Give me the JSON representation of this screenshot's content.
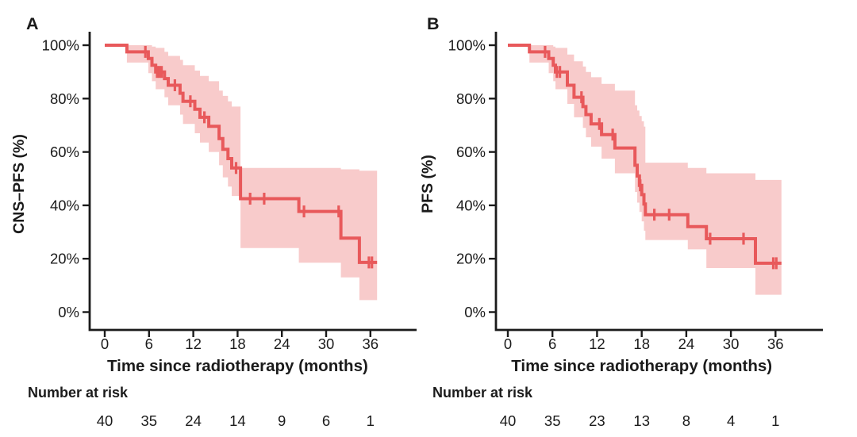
{
  "figure": {
    "background": "#ffffff",
    "text_color": "#1b1b1b",
    "axis_color": "#1b1b1b"
  },
  "chart_data": [
    {
      "type": "line",
      "subtype": "kaplan_meier_survival_with_confidence_band",
      "panel_label": "A",
      "ylabel": "CNS–PFS (%)",
      "xlabel": "Time since radiotherapy (months)",
      "x_tick_values": [
        0,
        6,
        12,
        18,
        24,
        30,
        36
      ],
      "x_tick_labels": [
        "0",
        "6",
        "12",
        "18",
        "24",
        "30",
        "36"
      ],
      "y_tick_values": [
        0,
        20,
        40,
        60,
        80,
        100
      ],
      "y_tick_labels": [
        "0%",
        "20%",
        "40%",
        "60%",
        "80%",
        "100%"
      ],
      "xlim": [
        0,
        40
      ],
      "ylim": [
        0,
        100
      ],
      "grid": false,
      "legend": "none",
      "line_color": "#e8595b",
      "band_color": "#f8cbcb",
      "curve_end_time": 36.9,
      "survival_steps": [
        [
          0,
          100
        ],
        [
          3.0,
          97.5
        ],
        [
          5.9,
          95.0
        ],
        [
          6.4,
          92.5
        ],
        [
          6.9,
          90.0
        ],
        [
          8.1,
          87.5
        ],
        [
          8.6,
          85.0
        ],
        [
          10.2,
          82.0
        ],
        [
          10.6,
          79.0
        ],
        [
          12.2,
          76.0
        ],
        [
          12.9,
          73.0
        ],
        [
          14.1,
          69.6
        ],
        [
          15.5,
          65.0
        ],
        [
          16.0,
          61.0
        ],
        [
          16.7,
          57.5
        ],
        [
          17.2,
          54.0
        ],
        [
          18.4,
          42.5
        ],
        [
          26.3,
          37.7
        ],
        [
          32.0,
          27.7
        ],
        [
          34.5,
          18.6
        ]
      ],
      "censor_marks": [
        [
          5.5,
          97.5
        ],
        [
          7.1,
          90.0
        ],
        [
          7.4,
          90.0
        ],
        [
          7.7,
          90.0
        ],
        [
          9.5,
          85.0
        ],
        [
          11.6,
          79.0
        ],
        [
          13.5,
          73.0
        ],
        [
          17.8,
          54.0
        ],
        [
          19.7,
          42.5
        ],
        [
          21.6,
          42.5
        ],
        [
          27.0,
          37.7
        ],
        [
          31.7,
          37.7
        ],
        [
          35.8,
          18.6
        ],
        [
          36.2,
          18.6
        ]
      ],
      "confidence_band": [
        [
          3.0,
          93.5,
          100.0
        ],
        [
          5.9,
          89.5,
          100.0
        ],
        [
          6.4,
          86.5,
          99.5
        ],
        [
          6.9,
          83.5,
          99.0
        ],
        [
          8.1,
          80.5,
          97.5
        ],
        [
          8.6,
          77.5,
          96.0
        ],
        [
          10.2,
          74.0,
          94.5
        ],
        [
          10.6,
          70.5,
          92.5
        ],
        [
          12.2,
          67.0,
          90.5
        ],
        [
          12.9,
          63.5,
          88.5
        ],
        [
          14.1,
          60.0,
          86.5
        ],
        [
          15.5,
          55.0,
          83.0
        ],
        [
          16.0,
          50.5,
          81.0
        ],
        [
          16.7,
          47.0,
          79.0
        ],
        [
          17.2,
          43.5,
          77.0
        ],
        [
          18.4,
          24.0,
          54.0
        ],
        [
          26.3,
          18.5,
          54.0
        ],
        [
          32.0,
          13.0,
          53.5
        ],
        [
          34.5,
          4.5,
          53.0
        ]
      ],
      "risk_section": {
        "label": "Number at risk",
        "times": [
          0,
          6,
          12,
          18,
          24,
          30,
          36
        ],
        "counts": [
          40,
          35,
          24,
          14,
          9,
          6,
          1
        ]
      }
    },
    {
      "type": "line",
      "subtype": "kaplan_meier_survival_with_confidence_band",
      "panel_label": "B",
      "ylabel": "PFS (%)",
      "xlabel": "Time since radiotherapy (months)",
      "x_tick_values": [
        0,
        6,
        12,
        18,
        24,
        30,
        36
      ],
      "x_tick_labels": [
        "0",
        "6",
        "12",
        "18",
        "24",
        "30",
        "36"
      ],
      "y_tick_values": [
        0,
        20,
        40,
        60,
        80,
        100
      ],
      "y_tick_labels": [
        "0%",
        "20%",
        "40%",
        "60%",
        "80%",
        "100%"
      ],
      "xlim": [
        0,
        40
      ],
      "ylim": [
        0,
        100
      ],
      "grid": false,
      "legend": "none",
      "line_color": "#e8595b",
      "band_color": "#f8cbcb",
      "curve_end_time": 36.8,
      "survival_steps": [
        [
          0,
          100
        ],
        [
          2.9,
          97.5
        ],
        [
          5.5,
          95.0
        ],
        [
          6.1,
          92.5
        ],
        [
          6.4,
          90.0
        ],
        [
          8.0,
          85.0
        ],
        [
          8.9,
          80.5
        ],
        [
          10.1,
          77.0
        ],
        [
          10.5,
          74.0
        ],
        [
          11.2,
          70.5
        ],
        [
          12.6,
          66.5
        ],
        [
          14.4,
          61.5
        ],
        [
          17.1,
          55.0
        ],
        [
          17.4,
          51.0
        ],
        [
          17.7,
          47.5
        ],
        [
          18.0,
          44.0
        ],
        [
          18.3,
          40.5
        ],
        [
          18.5,
          36.5
        ],
        [
          24.2,
          32.0
        ],
        [
          26.7,
          27.5
        ],
        [
          33.3,
          18.3
        ]
      ],
      "censor_marks": [
        [
          5.0,
          97.5
        ],
        [
          6.6,
          90.0
        ],
        [
          7.0,
          90.0
        ],
        [
          9.9,
          80.5
        ],
        [
          12.3,
          70.5
        ],
        [
          14.1,
          66.5
        ],
        [
          17.8,
          47.5
        ],
        [
          19.7,
          36.5
        ],
        [
          21.7,
          36.5
        ],
        [
          27.2,
          27.5
        ],
        [
          31.7,
          27.5
        ],
        [
          35.7,
          18.3
        ],
        [
          36.1,
          18.3
        ]
      ],
      "confidence_band": [
        [
          2.9,
          93.5,
          100.0
        ],
        [
          5.5,
          89.5,
          100.0
        ],
        [
          6.1,
          86.5,
          99.5
        ],
        [
          6.4,
          83.5,
          99.0
        ],
        [
          8.0,
          78.0,
          96.5
        ],
        [
          8.9,
          73.0,
          94.0
        ],
        [
          10.1,
          69.0,
          92.0
        ],
        [
          10.5,
          65.5,
          90.0
        ],
        [
          11.2,
          62.0,
          88.0
        ],
        [
          12.6,
          57.5,
          85.5
        ],
        [
          14.4,
          52.0,
          83.0
        ],
        [
          17.1,
          45.0,
          77.5
        ],
        [
          17.4,
          41.0,
          75.5
        ],
        [
          17.7,
          37.5,
          73.5
        ],
        [
          18.0,
          34.0,
          71.5
        ],
        [
          18.3,
          30.5,
          69.5
        ],
        [
          18.5,
          27.0,
          56.0
        ],
        [
          24.2,
          23.5,
          54.0
        ],
        [
          26.7,
          16.5,
          52.0
        ],
        [
          33.3,
          6.5,
          49.5
        ]
      ],
      "risk_section": {
        "label": "Number at risk",
        "times": [
          0,
          6,
          12,
          18,
          24,
          30,
          36
        ],
        "counts": [
          40,
          35,
          23,
          13,
          8,
          4,
          1
        ]
      }
    }
  ]
}
